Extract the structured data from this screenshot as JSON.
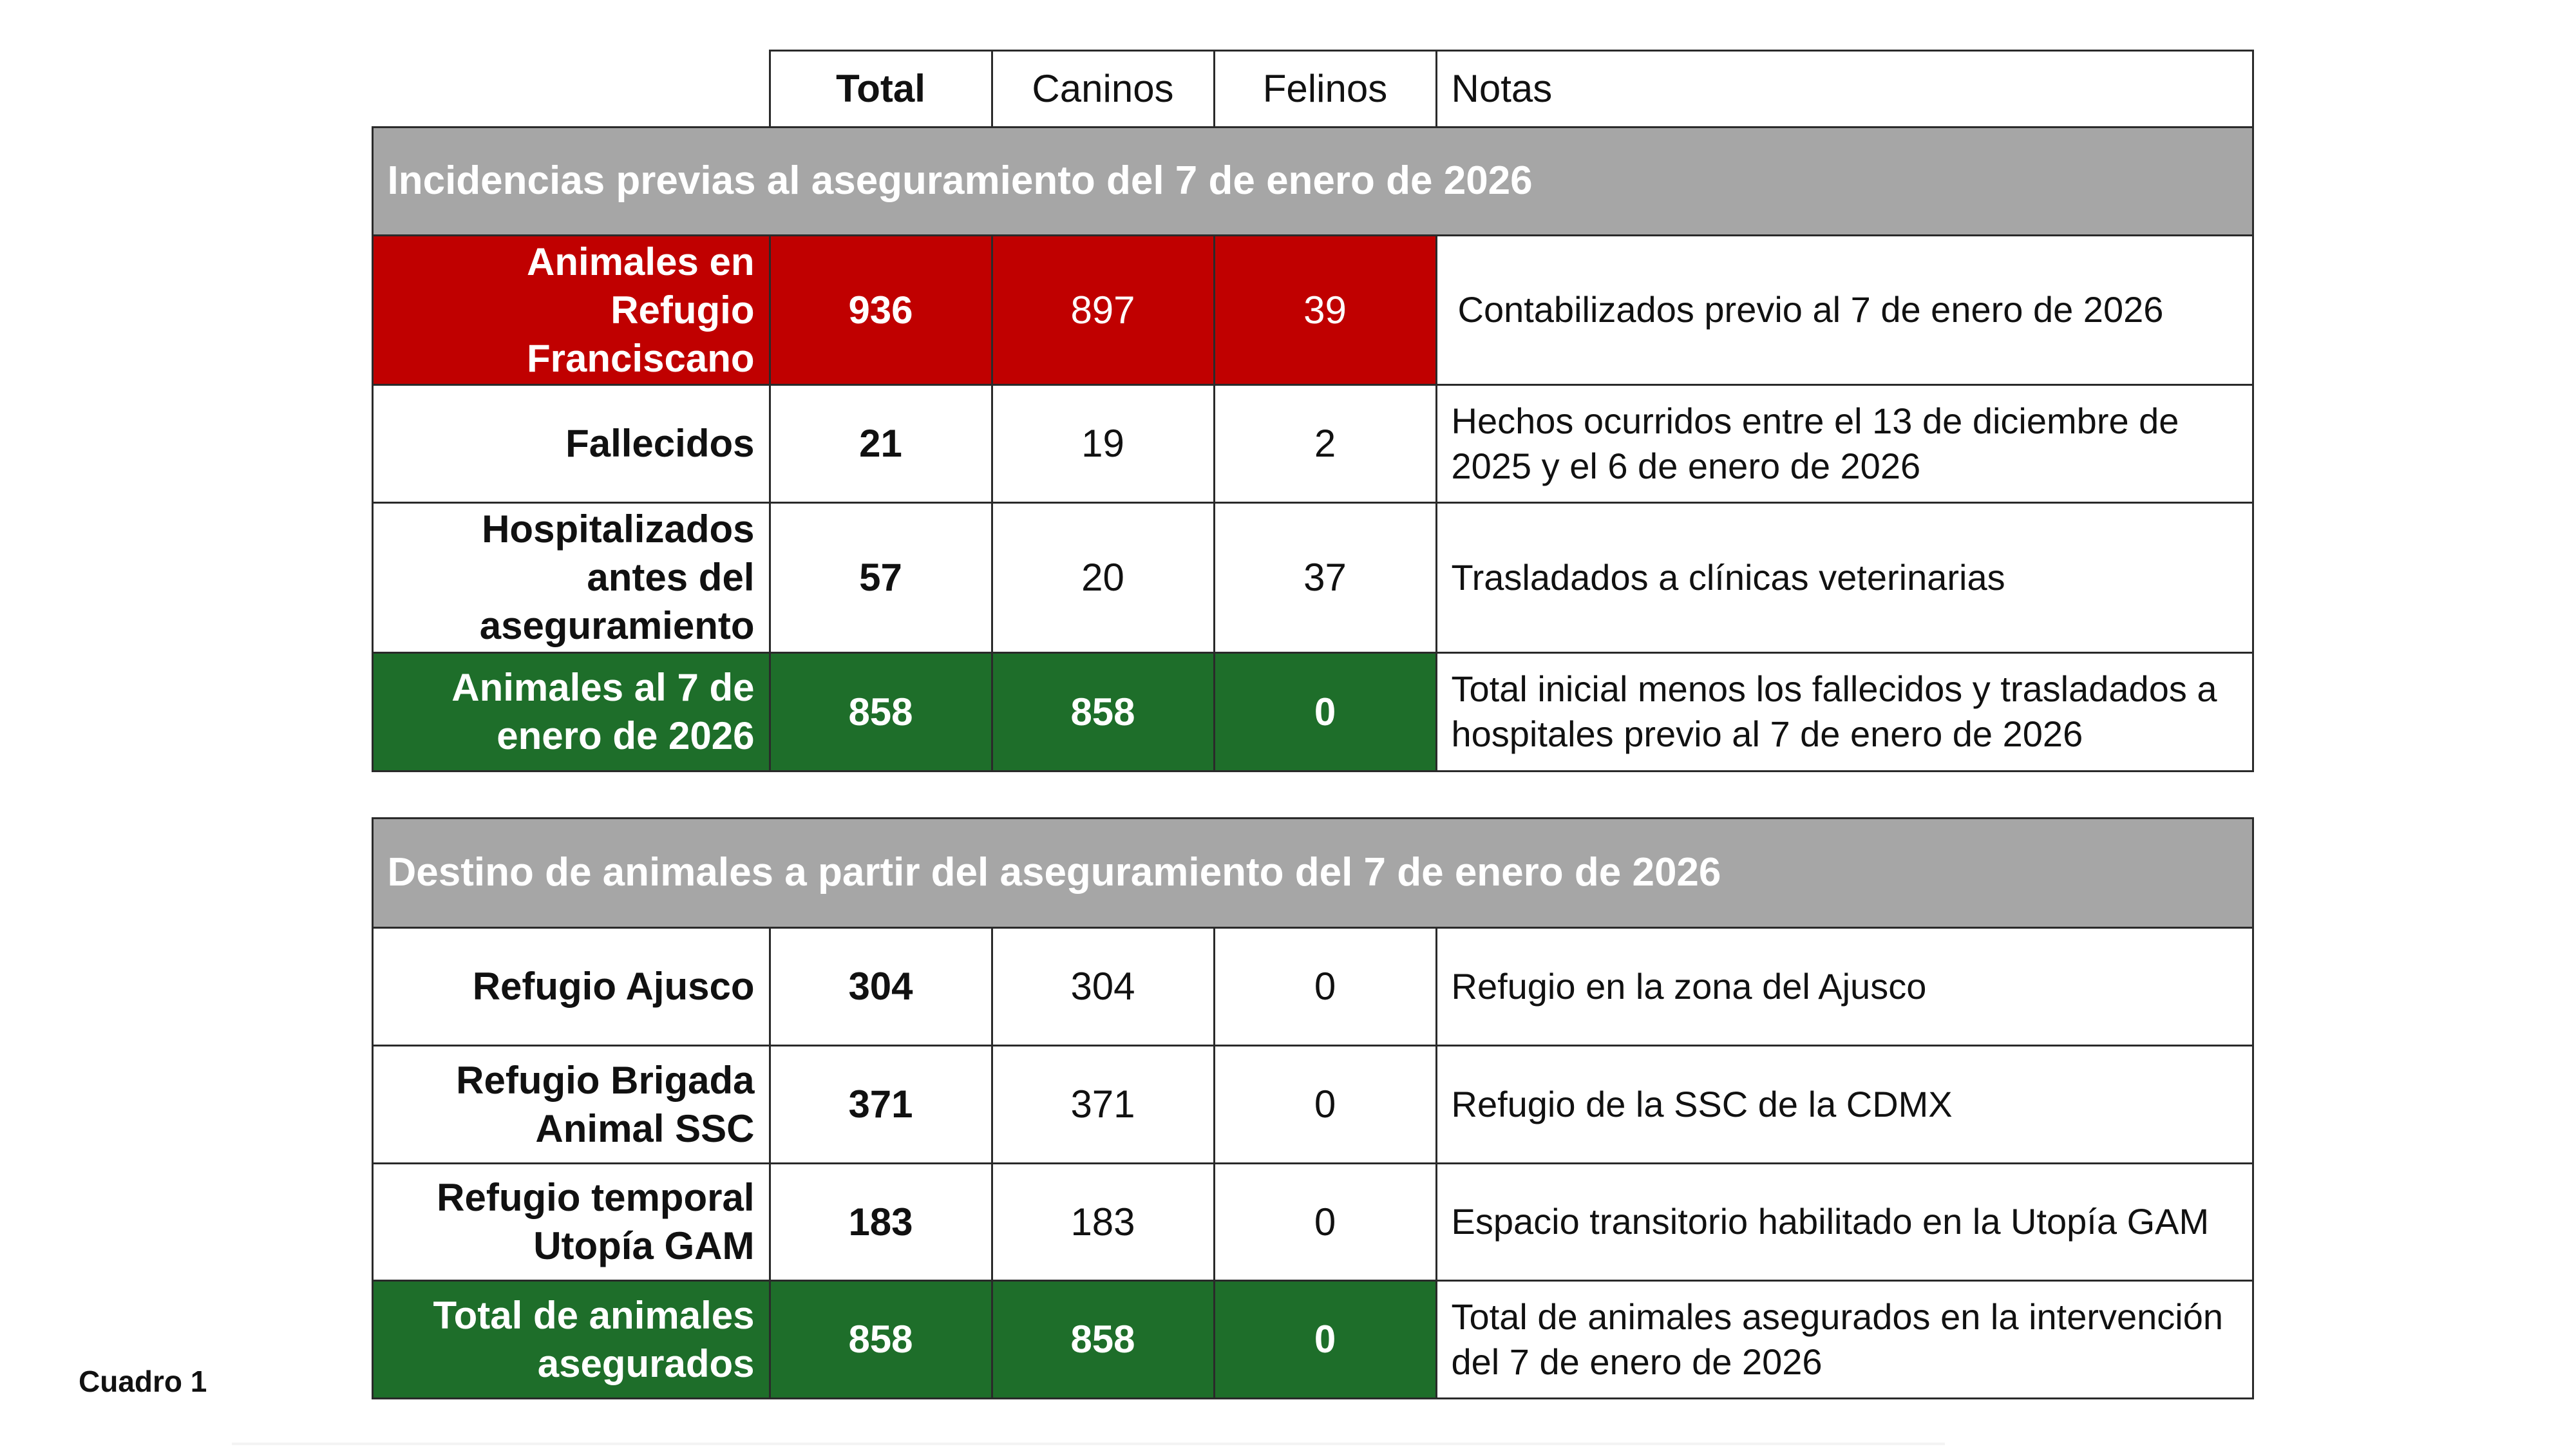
{
  "header": {
    "c1": "Total",
    "c2": "Caninos",
    "c3": "Felinos",
    "c4": "Notas"
  },
  "section1": {
    "title": "Incidencias previas al aseguramiento del 7 de enero de 2026",
    "rows": [
      {
        "label": "Animales en Refugio Franciscano",
        "total": "936",
        "caninos": "897",
        "felinos": "39",
        "note": "Contabilizados previo al 7 de enero de 2026",
        "style": "red"
      },
      {
        "label": "Fallecidos",
        "total": "21",
        "caninos": "19",
        "felinos": "2",
        "note": "Hechos ocurridos entre el 13 de diciembre de 2025 y el 6 de enero de 2026",
        "style": "white"
      },
      {
        "label": "Hospitalizados antes del aseguramiento",
        "total": "57",
        "caninos": "20",
        "felinos": "37",
        "note": "Trasladados a clínicas veterinarias",
        "style": "white"
      },
      {
        "label": "Animales al 7 de enero de 2026",
        "total": "858",
        "caninos": "858",
        "felinos": "0",
        "note": "Total inicial menos los fallecidos y trasladados a hospitales previo al 7 de enero de 2026",
        "style": "green"
      }
    ]
  },
  "section2": {
    "title": "Destino de animales a partir del aseguramiento del 7 de enero de 2026",
    "rows": [
      {
        "label": "Refugio Ajusco",
        "total": "304",
        "caninos": "304",
        "felinos": "0",
        "note": "Refugio en la zona del Ajusco",
        "style": "white"
      },
      {
        "label": "Refugio Brigada Animal SSC",
        "total": "371",
        "caninos": "371",
        "felinos": "0",
        "note": "Refugio de la SSC de la CDMX",
        "style": "white"
      },
      {
        "label": "Refugio temporal Utopía GAM",
        "total": "183",
        "caninos": "183",
        "felinos": "0",
        "note": "Espacio transitorio habilitado en la Utopía GAM",
        "style": "white"
      },
      {
        "label": "Total de animales asegurados",
        "total": "858",
        "caninos": "858",
        "felinos": "0",
        "note": "Total de animales asegurados en la intervención del 7 de enero de 2026",
        "style": "green"
      }
    ]
  },
  "caption": "Cuadro 1",
  "colors": {
    "red": "#c00000",
    "green": "#1e6e2a",
    "gray": "#a6a6a6"
  }
}
